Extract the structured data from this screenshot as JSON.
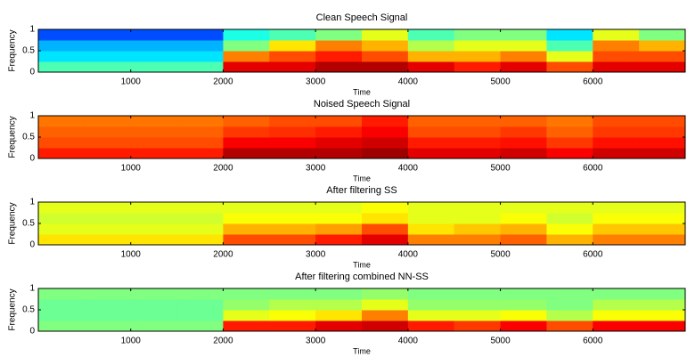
{
  "chart_data": [
    {
      "type": "heatmap",
      "title": "Clean Speech Signal",
      "xlabel": "Time",
      "ylabel": "Frequency",
      "xlim": [
        0,
        7000
      ],
      "ylim": [
        0,
        1
      ],
      "xticks": [
        1000,
        2000,
        3000,
        4000,
        5000,
        6000
      ],
      "yticks": [
        0,
        0.5,
        1
      ],
      "x": [
        0,
        500,
        1000,
        1500,
        2000,
        2500,
        3000,
        3500,
        4000,
        4500,
        5000,
        5500,
        6000,
        6500
      ],
      "y": [
        0,
        0.25,
        0.5,
        0.75
      ],
      "values": [
        [
          0.45,
          0.45,
          0.45,
          0.45,
          0.9,
          0.9,
          0.95,
          0.95,
          0.9,
          0.85,
          0.9,
          0.8,
          0.9,
          0.9
        ],
        [
          0.35,
          0.35,
          0.35,
          0.35,
          0.75,
          0.8,
          0.85,
          0.8,
          0.7,
          0.7,
          0.75,
          0.6,
          0.8,
          0.8
        ],
        [
          0.3,
          0.3,
          0.3,
          0.3,
          0.5,
          0.65,
          0.75,
          0.7,
          0.55,
          0.6,
          0.6,
          0.45,
          0.75,
          0.7
        ],
        [
          0.2,
          0.2,
          0.2,
          0.2,
          0.4,
          0.45,
          0.5,
          0.6,
          0.45,
          0.5,
          0.5,
          0.35,
          0.6,
          0.5
        ]
      ]
    },
    {
      "type": "heatmap",
      "title": "Noised Speech Signal",
      "xlabel": "Time",
      "ylabel": "Frequency",
      "xlim": [
        0,
        7000
      ],
      "ylim": [
        0,
        1
      ],
      "xticks": [
        1000,
        2000,
        3000,
        4000,
        5000,
        6000
      ],
      "yticks": [
        0,
        0.5,
        1
      ],
      "x": [
        0,
        500,
        1000,
        1500,
        2000,
        2500,
        3000,
        3500,
        4000,
        4500,
        5000,
        5500,
        6000,
        6500
      ],
      "y": [
        0,
        0.25,
        0.5,
        0.75
      ],
      "values": [
        [
          0.85,
          0.85,
          0.85,
          0.85,
          0.95,
          0.95,
          0.95,
          0.97,
          0.9,
          0.9,
          0.92,
          0.88,
          0.92,
          0.92
        ],
        [
          0.8,
          0.8,
          0.8,
          0.8,
          0.88,
          0.88,
          0.9,
          0.92,
          0.85,
          0.85,
          0.86,
          0.82,
          0.86,
          0.86
        ],
        [
          0.78,
          0.78,
          0.78,
          0.78,
          0.82,
          0.83,
          0.85,
          0.88,
          0.8,
          0.8,
          0.82,
          0.78,
          0.82,
          0.82
        ],
        [
          0.76,
          0.76,
          0.76,
          0.76,
          0.78,
          0.8,
          0.8,
          0.85,
          0.78,
          0.78,
          0.78,
          0.76,
          0.8,
          0.8
        ]
      ]
    },
    {
      "type": "heatmap",
      "title": "After filtering SS",
      "xlabel": "Time",
      "ylabel": "Frequency",
      "xlim": [
        0,
        7000
      ],
      "ylim": [
        0,
        1
      ],
      "xticks": [
        1000,
        2000,
        3000,
        4000,
        5000,
        6000
      ],
      "yticks": [
        0,
        0.5,
        1
      ],
      "x": [
        0,
        500,
        1000,
        1500,
        2000,
        2500,
        3000,
        3500,
        4000,
        4500,
        5000,
        5500,
        6000,
        6500
      ],
      "y": [
        0,
        0.25,
        0.5,
        0.75
      ],
      "values": [
        [
          0.65,
          0.65,
          0.65,
          0.65,
          0.8,
          0.8,
          0.85,
          0.9,
          0.75,
          0.75,
          0.78,
          0.7,
          0.75,
          0.75
        ],
        [
          0.6,
          0.6,
          0.6,
          0.6,
          0.7,
          0.7,
          0.72,
          0.8,
          0.65,
          0.68,
          0.7,
          0.62,
          0.68,
          0.68
        ],
        [
          0.58,
          0.58,
          0.58,
          0.58,
          0.62,
          0.62,
          0.62,
          0.65,
          0.6,
          0.6,
          0.62,
          0.58,
          0.62,
          0.62
        ],
        [
          0.6,
          0.6,
          0.6,
          0.6,
          0.6,
          0.6,
          0.6,
          0.62,
          0.6,
          0.6,
          0.6,
          0.6,
          0.6,
          0.6
        ]
      ]
    },
    {
      "type": "heatmap",
      "title": "After filtering combined NN-SS",
      "xlabel": "Time",
      "ylabel": "Frequency",
      "xlim": [
        0,
        7000
      ],
      "ylim": [
        0,
        1
      ],
      "xticks": [
        1000,
        2000,
        3000,
        4000,
        5000,
        6000
      ],
      "yticks": [
        0,
        0.5,
        1
      ],
      "x": [
        0,
        500,
        1000,
        1500,
        2000,
        2500,
        3000,
        3500,
        4000,
        4500,
        5000,
        5500,
        6000,
        6500
      ],
      "y": [
        0,
        0.25,
        0.5,
        0.75
      ],
      "values": [
        [
          0.5,
          0.5,
          0.5,
          0.5,
          0.85,
          0.85,
          0.9,
          0.92,
          0.85,
          0.82,
          0.88,
          0.8,
          0.88,
          0.88
        ],
        [
          0.48,
          0.48,
          0.48,
          0.48,
          0.6,
          0.62,
          0.65,
          0.75,
          0.6,
          0.6,
          0.62,
          0.55,
          0.62,
          0.62
        ],
        [
          0.48,
          0.48,
          0.48,
          0.48,
          0.52,
          0.55,
          0.55,
          0.6,
          0.52,
          0.52,
          0.52,
          0.5,
          0.55,
          0.55
        ],
        [
          0.5,
          0.5,
          0.5,
          0.5,
          0.5,
          0.5,
          0.5,
          0.52,
          0.5,
          0.5,
          0.5,
          0.5,
          0.5,
          0.5
        ]
      ]
    }
  ]
}
